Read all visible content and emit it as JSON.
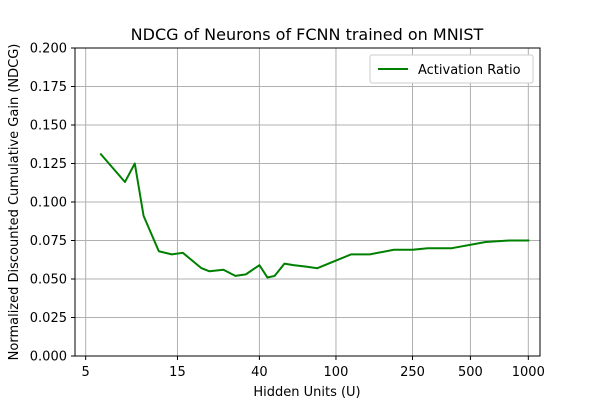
{
  "chart_data": {
    "type": "line",
    "title": "NDCG of Neurons of FCNN trained on MNIST",
    "xlabel": "Hidden Units (U)",
    "ylabel": "Normalized Discounted Cumulative Gain (NDCG)",
    "x_scale": "log",
    "xlim": [
      4.4,
      1150
    ],
    "ylim": [
      0.0,
      0.2
    ],
    "x_ticks": [
      5,
      15,
      40,
      100,
      250,
      500,
      1000
    ],
    "x_tick_labels": [
      "5",
      "15",
      "40",
      "100",
      "250",
      "500",
      "1000"
    ],
    "y_ticks": [
      0.0,
      0.025,
      0.05,
      0.075,
      0.1,
      0.125,
      0.15,
      0.175,
      0.2
    ],
    "y_tick_labels": [
      "0.000",
      "0.025",
      "0.050",
      "0.075",
      "0.100",
      "0.125",
      "0.150",
      "0.175",
      "0.200"
    ],
    "grid": true,
    "legend_position": "top-right",
    "series": [
      {
        "name": "Activation Ratio",
        "color": "#008000",
        "x": [
          6,
          8,
          9,
          10,
          12,
          14,
          16,
          20,
          22,
          26,
          30,
          34,
          40,
          44,
          48,
          54,
          60,
          70,
          80,
          100,
          120,
          150,
          200,
          250,
          300,
          400,
          600,
          800,
          1000
        ],
        "y": [
          0.131,
          0.113,
          0.125,
          0.091,
          0.068,
          0.066,
          0.067,
          0.057,
          0.055,
          0.056,
          0.052,
          0.053,
          0.059,
          0.051,
          0.052,
          0.06,
          0.059,
          0.058,
          0.057,
          0.062,
          0.066,
          0.066,
          0.069,
          0.069,
          0.07,
          0.07,
          0.074,
          0.075,
          0.075
        ]
      }
    ]
  }
}
